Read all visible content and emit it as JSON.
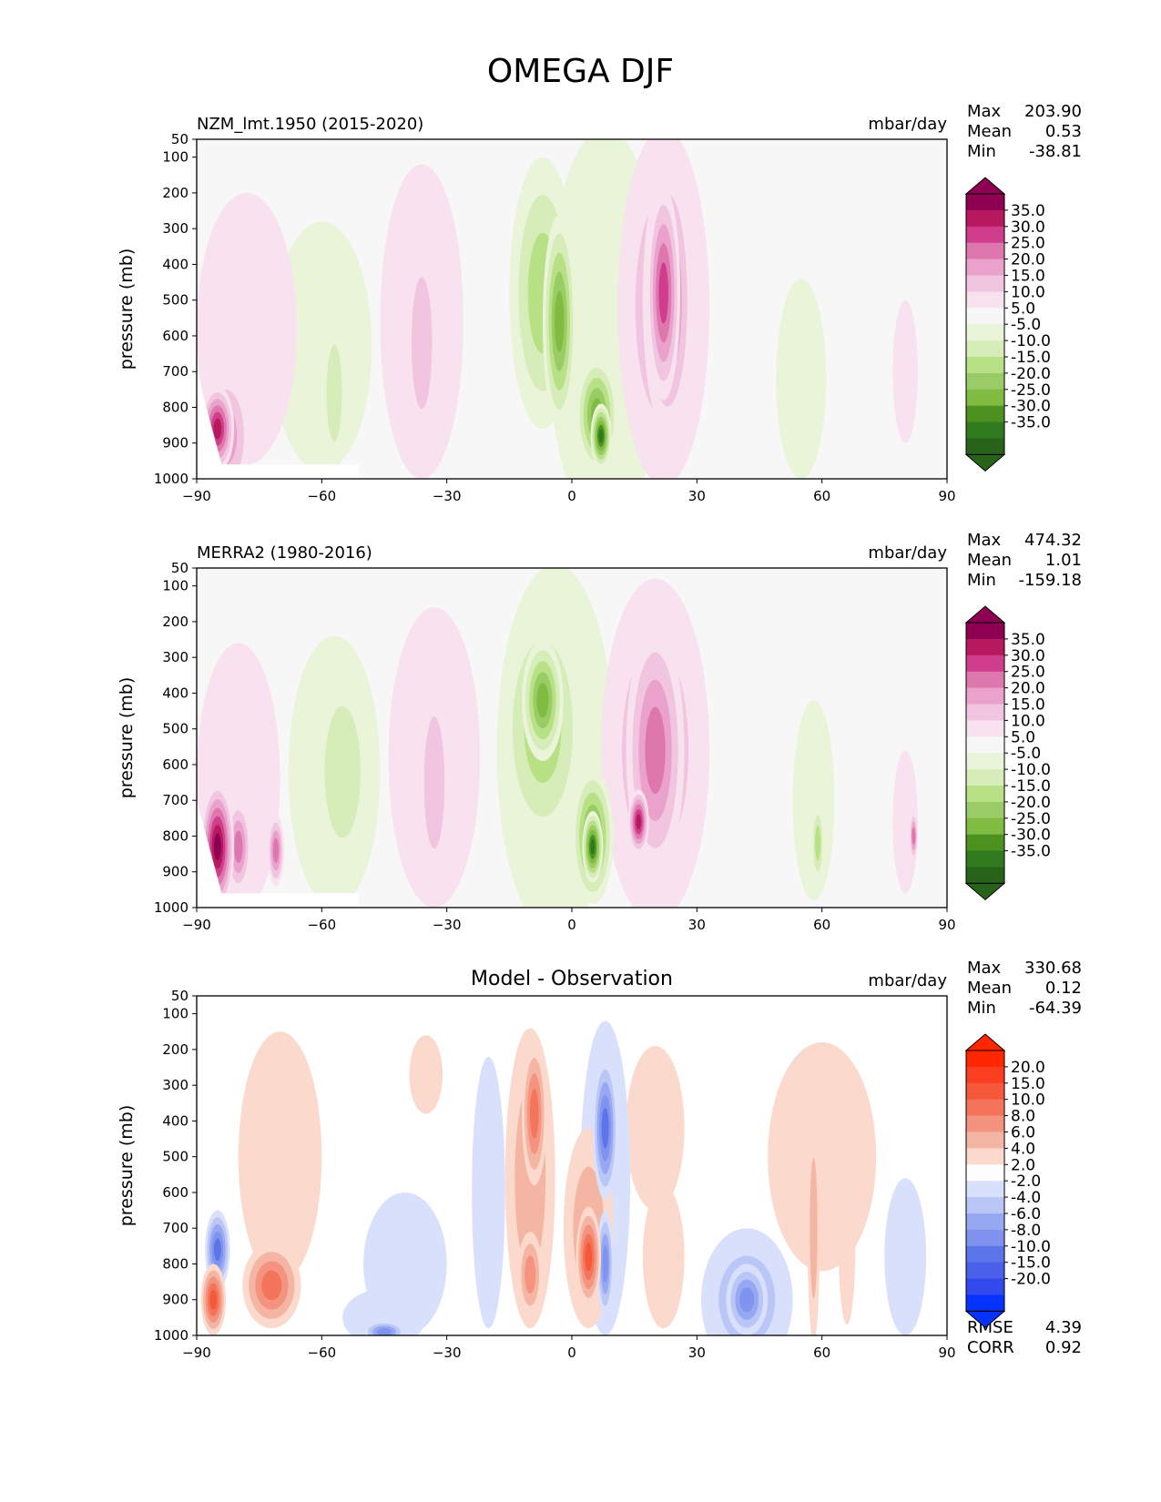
{
  "title": "OMEGA DJF",
  "chart_data": [
    {
      "type": "contour",
      "title": "NZM_lmt.1950 (2015-2020)",
      "units": "mbar/day",
      "ylabel": "pressure (mb)",
      "xlim": [
        -90,
        90
      ],
      "ylim": [
        1000,
        50
      ],
      "xticks": [
        "−90",
        "−60",
        "−30",
        "0",
        "30",
        "60",
        "90"
      ],
      "yticks": [
        "50",
        "100",
        "200",
        "300",
        "400",
        "500",
        "600",
        "700",
        "800",
        "900",
        "1000"
      ],
      "stats": [
        {
          "label": "Max",
          "value": "203.90"
        },
        {
          "label": "Mean",
          "value": "0.53"
        },
        {
          "label": "Min",
          "value": "-38.81"
        }
      ],
      "colorbar": {
        "labels": [
          "35.0",
          "30.0",
          "25.0",
          "20.0",
          "15.0",
          "10.0",
          "5.0",
          "-5.0",
          "-10.0",
          "-15.0",
          "-20.0",
          "-25.0",
          "-30.0",
          "-35.0"
        ],
        "colors": [
          "#8e0152",
          "#b7195f",
          "#cf3d8c",
          "#de77ae",
          "#eaa2cc",
          "#f1c5e0",
          "#f8e2ef",
          "#f7f7f7",
          "#e9f4d8",
          "#d6edb9",
          "#b8e186",
          "#99cc66",
          "#7fbc41",
          "#4d9221",
          "#2f7a1c",
          "#276419"
        ],
        "top_color": "#8e0152",
        "bottom_color": "#276419"
      },
      "blobs": [
        {
          "x": 8,
          "p": 580,
          "rx": 14,
          "rp": 560,
          "v": -8
        },
        {
          "x": -7,
          "p": 480,
          "rx": 8,
          "rp": 380,
          "v": -20
        },
        {
          "x": -3,
          "p": 560,
          "rx": 4,
          "rp": 300,
          "v": -26
        },
        {
          "x": 6,
          "p": 820,
          "rx": 5,
          "rp": 160,
          "v": -30
        },
        {
          "x": 7,
          "p": 880,
          "rx": 2.5,
          "rp": 90,
          "v": -38
        },
        {
          "x": 22,
          "p": 520,
          "rx": 11,
          "rp": 500,
          "v": 12
        },
        {
          "x": 23,
          "p": 500,
          "rx": 6,
          "rp": 380,
          "v": 20
        },
        {
          "x": 22,
          "p": 480,
          "rx": 4,
          "rp": 300,
          "v": 27
        },
        {
          "x": -36,
          "p": 560,
          "rx": 10,
          "rp": 440,
          "v": 6
        },
        {
          "x": -36,
          "p": 620,
          "rx": 4,
          "rp": 300,
          "v": 11
        },
        {
          "x": -60,
          "p": 630,
          "rx": 12,
          "rp": 350,
          "v": -6
        },
        {
          "x": -57,
          "p": 760,
          "rx": 3,
          "rp": 220,
          "v": -11
        },
        {
          "x": 55,
          "p": 720,
          "rx": 6,
          "rp": 280,
          "v": -6
        },
        {
          "x": -78,
          "p": 580,
          "rx": 12,
          "rp": 380,
          "v": 6
        },
        {
          "x": -85,
          "p": 860,
          "rx": 4,
          "rp": 120,
          "v": 32
        },
        {
          "x": -83,
          "p": 880,
          "rx": 6,
          "rp": 180,
          "v": 18
        },
        {
          "x": 80,
          "p": 700,
          "rx": 3,
          "rp": 200,
          "v": 6
        }
      ]
    },
    {
      "type": "contour",
      "title": "MERRA2 (1980-2016)",
      "units": "mbar/day",
      "ylabel": "pressure (mb)",
      "xlim": [
        -90,
        90
      ],
      "ylim": [
        1000,
        50
      ],
      "xticks": [
        "−90",
        "−60",
        "−30",
        "0",
        "30",
        "60",
        "90"
      ],
      "yticks": [
        "50",
        "100",
        "200",
        "300",
        "400",
        "500",
        "600",
        "700",
        "800",
        "900",
        "1000"
      ],
      "stats": [
        {
          "label": "Max",
          "value": "474.32"
        },
        {
          "label": "Mean",
          "value": "1.01"
        },
        {
          "label": "Min",
          "value": "-159.18"
        }
      ],
      "colorbar": {
        "labels": [
          "35.0",
          "30.0",
          "25.0",
          "20.0",
          "15.0",
          "10.0",
          "5.0",
          "-5.0",
          "-10.0",
          "-15.0",
          "-20.0",
          "-25.0",
          "-30.0",
          "-35.0"
        ],
        "colors": [
          "#8e0152",
          "#b7195f",
          "#cf3d8c",
          "#de77ae",
          "#eaa2cc",
          "#f1c5e0",
          "#f8e2ef",
          "#f7f7f7",
          "#e9f4d8",
          "#d6edb9",
          "#b8e186",
          "#99cc66",
          "#7fbc41",
          "#4d9221",
          "#2f7a1c",
          "#276419"
        ],
        "top_color": "#8e0152",
        "bottom_color": "#276419"
      },
      "blobs": [
        {
          "x": -4,
          "p": 560,
          "rx": 14,
          "rp": 520,
          "v": -8
        },
        {
          "x": -7,
          "p": 500,
          "rx": 10,
          "rp": 340,
          "v": -20
        },
        {
          "x": -7,
          "p": 420,
          "rx": 5,
          "rp": 170,
          "v": -30
        },
        {
          "x": 5,
          "p": 800,
          "rx": 5,
          "rp": 190,
          "v": -30
        },
        {
          "x": 5,
          "p": 830,
          "rx": 2.5,
          "rp": 100,
          "v": -38
        },
        {
          "x": 20,
          "p": 560,
          "rx": 13,
          "rp": 480,
          "v": 12
        },
        {
          "x": 20,
          "p": 560,
          "rx": 7,
          "rp": 350,
          "v": 22
        },
        {
          "x": 16,
          "p": 760,
          "rx": 2.5,
          "rp": 90,
          "v": 30
        },
        {
          "x": -33,
          "p": 580,
          "rx": 11,
          "rp": 420,
          "v": 6
        },
        {
          "x": -33,
          "p": 650,
          "rx": 4,
          "rp": 300,
          "v": 11
        },
        {
          "x": -57,
          "p": 620,
          "rx": 11,
          "rp": 380,
          "v": -8
        },
        {
          "x": -55,
          "p": 620,
          "rx": 7,
          "rp": 300,
          "v": -13
        },
        {
          "x": 58,
          "p": 700,
          "rx": 5,
          "rp": 280,
          "v": -7
        },
        {
          "x": 59,
          "p": 820,
          "rx": 1.5,
          "rp": 110,
          "v": -16
        },
        {
          "x": -80,
          "p": 640,
          "rx": 10,
          "rp": 380,
          "v": 6
        },
        {
          "x": -85,
          "p": 830,
          "rx": 4,
          "rp": 180,
          "v": 38
        },
        {
          "x": -80,
          "p": 830,
          "rx": 3,
          "rp": 130,
          "v": 24
        },
        {
          "x": -71,
          "p": 840,
          "rx": 2,
          "rp": 100,
          "v": 20
        },
        {
          "x": 80,
          "p": 760,
          "rx": 3,
          "rp": 200,
          "v": 8
        },
        {
          "x": 82,
          "p": 800,
          "rx": 1,
          "rp": 70,
          "v": 20
        }
      ]
    },
    {
      "type": "contour",
      "title": "Model - Observation",
      "units": "mbar/day",
      "ylabel": "pressure (mb)",
      "xlim": [
        -90,
        90
      ],
      "ylim": [
        1000,
        50
      ],
      "xticks": [
        "−90",
        "−60",
        "−30",
        "0",
        "30",
        "60",
        "90"
      ],
      "yticks": [
        "50",
        "100",
        "200",
        "300",
        "400",
        "500",
        "600",
        "700",
        "800",
        "900",
        "1000"
      ],
      "stats": [
        {
          "label": "Max",
          "value": "330.68"
        },
        {
          "label": "Mean",
          "value": "0.12"
        },
        {
          "label": "Min",
          "value": "-64.39"
        }
      ],
      "extra_stats": [
        {
          "label": "RMSE",
          "value": "4.39"
        },
        {
          "label": "CORR",
          "value": "0.92"
        }
      ],
      "colorbar": {
        "labels": [
          "20.0",
          "15.0",
          "10.0",
          "8.0",
          "6.0",
          "4.0",
          "2.0",
          "-2.0",
          "-4.0",
          "-6.0",
          "-8.0",
          "-10.0",
          "-15.0",
          "-20.0"
        ],
        "colors": [
          "#ff2600",
          "#fb3d22",
          "#f6583a",
          "#f47559",
          "#f39380",
          "#f5b5a3",
          "#fbd9cd",
          "#fdfdfd",
          "#d9e0fb",
          "#bac6f6",
          "#97a8f2",
          "#7f93ef",
          "#5c75ea",
          "#4a60ea",
          "#3249ee",
          "#0532ff"
        ],
        "top_color": "#ff2600",
        "bottom_color": "#0532ff"
      },
      "blobs": [
        {
          "x": -10,
          "p": 560,
          "rx": 6,
          "rp": 420,
          "v": 4
        },
        {
          "x": -9,
          "p": 380,
          "rx": 3,
          "rp": 200,
          "v": 9
        },
        {
          "x": -10,
          "p": 830,
          "rx": 3,
          "rp": 120,
          "v": 7
        },
        {
          "x": 8,
          "p": 560,
          "rx": 6,
          "rp": 440,
          "v": -4
        },
        {
          "x": 8,
          "p": 420,
          "rx": 3,
          "rp": 200,
          "v": -12
        },
        {
          "x": 8,
          "p": 800,
          "rx": 2,
          "rp": 150,
          "v": -9
        },
        {
          "x": 4,
          "p": 700,
          "rx": 6,
          "rp": 280,
          "v": 5
        },
        {
          "x": 4,
          "p": 780,
          "rx": 3,
          "rp": 140,
          "v": 10
        },
        {
          "x": -20,
          "p": 600,
          "rx": 4,
          "rp": 380,
          "v": -3
        },
        {
          "x": 20,
          "p": 420,
          "rx": 7,
          "rp": 230,
          "v": 3
        },
        {
          "x": 22,
          "p": 780,
          "rx": 5,
          "rp": 200,
          "v": 2.5
        },
        {
          "x": 60,
          "p": 500,
          "rx": 13,
          "rp": 320,
          "v": 2.5
        },
        {
          "x": 58,
          "p": 700,
          "rx": 1.5,
          "rp": 320,
          "v": 5
        },
        {
          "x": 66,
          "p": 750,
          "rx": 2,
          "rp": 220,
          "v": 3
        },
        {
          "x": 42,
          "p": 900,
          "rx": 11,
          "rp": 200,
          "v": -5
        },
        {
          "x": 42,
          "p": 900,
          "rx": 5,
          "rp": 100,
          "v": -9
        },
        {
          "x": 80,
          "p": 780,
          "rx": 5,
          "rp": 220,
          "v": -3
        },
        {
          "x": -35,
          "p": 270,
          "rx": 4,
          "rp": 110,
          "v": 2.5
        },
        {
          "x": -70,
          "p": 500,
          "rx": 10,
          "rp": 350,
          "v": 2.5
        },
        {
          "x": -72,
          "p": 860,
          "rx": 7,
          "rp": 120,
          "v": 9
        },
        {
          "x": -85,
          "p": 760,
          "rx": 3,
          "rp": 110,
          "v": -12
        },
        {
          "x": -86,
          "p": 900,
          "rx": 3,
          "rp": 100,
          "v": 12
        },
        {
          "x": -45,
          "p": 950,
          "rx": 10,
          "rp": 80,
          "v": -4
        },
        {
          "x": -45,
          "p": 990,
          "rx": 5,
          "rp": 30,
          "v": -9
        },
        {
          "x": -40,
          "p": 800,
          "rx": 10,
          "rp": 200,
          "v": -2.5
        }
      ]
    }
  ]
}
